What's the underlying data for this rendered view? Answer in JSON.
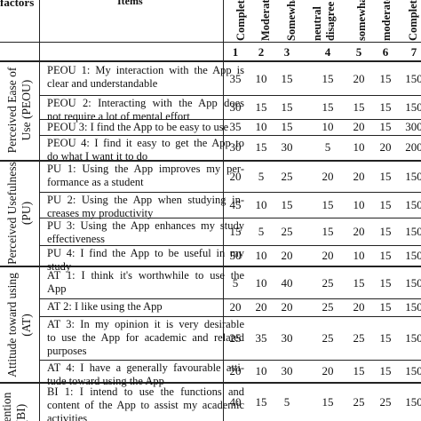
{
  "header": {
    "factor_label": "factors",
    "items_label": "Items",
    "columns": [
      {
        "num": "1",
        "label": "Completely"
      },
      {
        "num": "2",
        "label": "Moderately"
      },
      {
        "num": "3",
        "label": "Somewhat"
      },
      {
        "num": "4",
        "label": "neutral"
      },
      {
        "num": "5",
        "label": "somewhat"
      },
      {
        "num": "6",
        "label": "moderately"
      },
      {
        "num": "7",
        "label": "Completely"
      }
    ],
    "col4_sub": "disagree"
  },
  "groups": [
    {
      "label1": "Perceived Ease of",
      "label2": "Use (PEOU)"
    },
    {
      "label1": "Perceived Usefulness",
      "label2": "(PU)"
    },
    {
      "label1": "Attitude toward using",
      "label2": "(AT)"
    },
    {
      "label1": "Intention",
      "label2": "(BI)"
    }
  ],
  "rows": [
    {
      "line1": "PEOU 1: My interaction with the App is",
      "line2": "clear and understandable",
      "values": [
        "35",
        "10",
        "15",
        "15",
        "20",
        "15",
        "150"
      ]
    },
    {
      "line1": "PEOU 2: Interacting with the App does",
      "line2": "not require a lot of mental effort",
      "values": [
        "30",
        "15",
        "15",
        "15",
        "15",
        "15",
        "150"
      ]
    },
    {
      "line1": "PEOU 3: I find the App to be easy to use",
      "line2": "",
      "values": [
        "35",
        "10",
        "15",
        "10",
        "20",
        "15",
        "300"
      ]
    },
    {
      "line1": "PEOU 4: I find it easy to get the App to",
      "line2": "do what I want it to do",
      "values": [
        "30",
        "15",
        "30",
        "5",
        "10",
        "20",
        "200"
      ]
    },
    {
      "line1": "PU 1: Using the App improves my per-",
      "line2": "formance as a student",
      "values": [
        "20",
        "5",
        "25",
        "20",
        "20",
        "15",
        "150"
      ]
    },
    {
      "line1": "PU 2: Using the App when studying in-",
      "line2": "creases my productivity",
      "values": [
        "45",
        "10",
        "15",
        "15",
        "10",
        "15",
        "150"
      ]
    },
    {
      "line1": "PU 3: Using the App enhances my study",
      "line2": "effectiveness",
      "values": [
        "15",
        "5",
        "25",
        "15",
        "20",
        "15",
        "150"
      ]
    },
    {
      "line1": "PU 4: I find the App to be useful in my",
      "line2": "study",
      "values": [
        "50",
        "10",
        "20",
        "20",
        "10",
        "15",
        "150"
      ]
    },
    {
      "line1": "AT 1: I think it's worthwhile to use the",
      "line2": "App",
      "values": [
        "5",
        "10",
        "40",
        "25",
        "15",
        "15",
        "150"
      ]
    },
    {
      "line1": "AT 2: I like using the App",
      "line2": "",
      "values": [
        "20",
        "20",
        "20",
        "25",
        "20",
        "15",
        "150"
      ]
    },
    {
      "line1": "AT 3: In my opinion it is very desirable",
      "line2": "to use the App for academic and related",
      "line3": "purposes",
      "values": [
        "25",
        "35",
        "30",
        "25",
        "25",
        "15",
        "150"
      ]
    },
    {
      "line1": "AT 4: I have a generally favourable atti-",
      "line2": "tude toward using the App",
      "values": [
        "20",
        "10",
        "30",
        "20",
        "15",
        "15",
        "150"
      ]
    },
    {
      "line1": "BI 1: I intend to use the functions and",
      "line2": "content of the App to assist my academic",
      "line3": "activities",
      "values": [
        "40",
        "15",
        "5",
        "15",
        "25",
        "25",
        "150"
      ]
    }
  ]
}
